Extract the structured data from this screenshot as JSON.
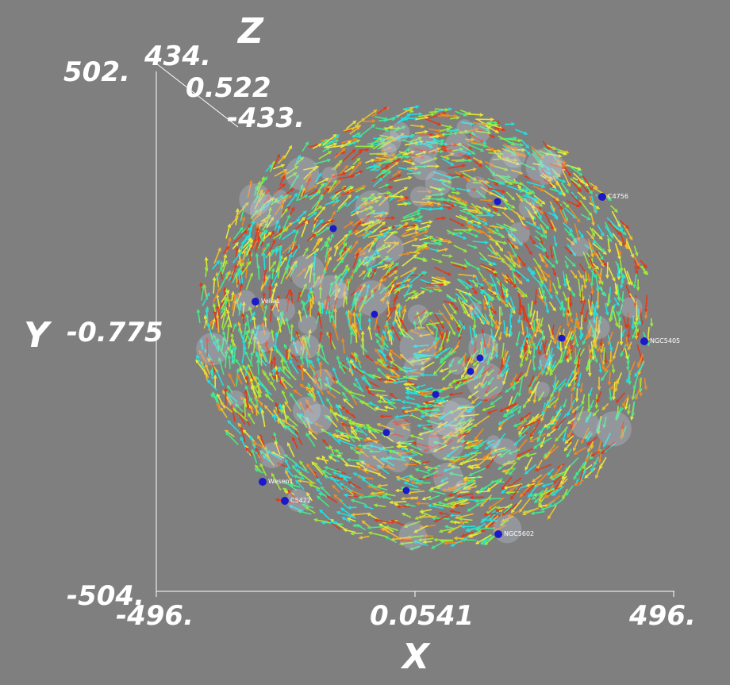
{
  "axes": {
    "x": {
      "label": "X",
      "min_label": "-496.",
      "mid_label": "0.0541",
      "max_label": "496."
    },
    "y": {
      "label": "Y",
      "min_label": "-504.",
      "mid_label": "-0.775",
      "max_label": "502."
    },
    "z": {
      "label": "Z",
      "max_label": "434.",
      "mid_label": "0.522",
      "min_label": "-433."
    }
  },
  "colors": {
    "background": "#7f7f7f",
    "axis_line": "#ffffff",
    "star_marker": "#1a1acc",
    "arrow_palette": [
      "#22e0e0",
      "#44e88a",
      "#9be83a",
      "#e8e838",
      "#f0c030",
      "#f08a20",
      "#e03a1a"
    ]
  },
  "stars": [
    {
      "label": "C4756"
    },
    {
      "label": "NGC5405"
    },
    {
      "label": "Wesen1"
    },
    {
      "label": "NGC5602"
    },
    {
      "label": "C5422"
    },
    {
      "label": "Velia1"
    }
  ]
}
